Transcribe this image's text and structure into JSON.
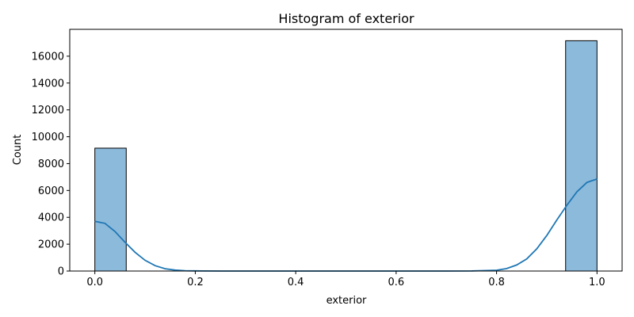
{
  "chart_data": {
    "type": "bar",
    "title": "Histogram of exterior",
    "xlabel": "exterior",
    "ylabel": "Count",
    "xlim": [
      -0.05,
      1.05
    ],
    "ylim": [
      0,
      18000
    ],
    "x_ticks": [
      0.0,
      0.2,
      0.4,
      0.6,
      0.8,
      1.0
    ],
    "x_tick_labels": [
      "0.0",
      "0.2",
      "0.4",
      "0.6",
      "0.8",
      "1.0"
    ],
    "y_ticks": [
      0,
      2000,
      4000,
      6000,
      8000,
      10000,
      12000,
      14000,
      16000
    ],
    "y_tick_labels": [
      "0",
      "2000",
      "4000",
      "6000",
      "8000",
      "10000",
      "12000",
      "14000",
      "16000"
    ],
    "bins": [
      {
        "x0": 0.0,
        "x1": 0.0625,
        "count": 9150
      },
      {
        "x0": 0.9375,
        "x1": 1.0,
        "count": 17150
      }
    ],
    "kde": {
      "x": [
        0.0,
        0.02,
        0.04,
        0.06,
        0.08,
        0.1,
        0.12,
        0.14,
        0.16,
        0.18,
        0.2,
        0.25,
        0.3,
        0.4,
        0.5,
        0.6,
        0.7,
        0.75,
        0.8,
        0.82,
        0.84,
        0.86,
        0.88,
        0.9,
        0.92,
        0.94,
        0.96,
        0.98,
        1.0
      ],
      "y": [
        3700,
        3550,
        2950,
        2150,
        1400,
        800,
        400,
        170,
        70,
        25,
        10,
        0,
        0,
        0,
        0,
        0,
        0,
        5,
        60,
        180,
        450,
        900,
        1650,
        2650,
        3800,
        4900,
        5900,
        6600,
        6850
      ]
    },
    "bar_color": "#8cbadb",
    "bar_edge_color": "#000000",
    "kde_color": "#1f77b4",
    "grid": false,
    "legend": "none"
  }
}
